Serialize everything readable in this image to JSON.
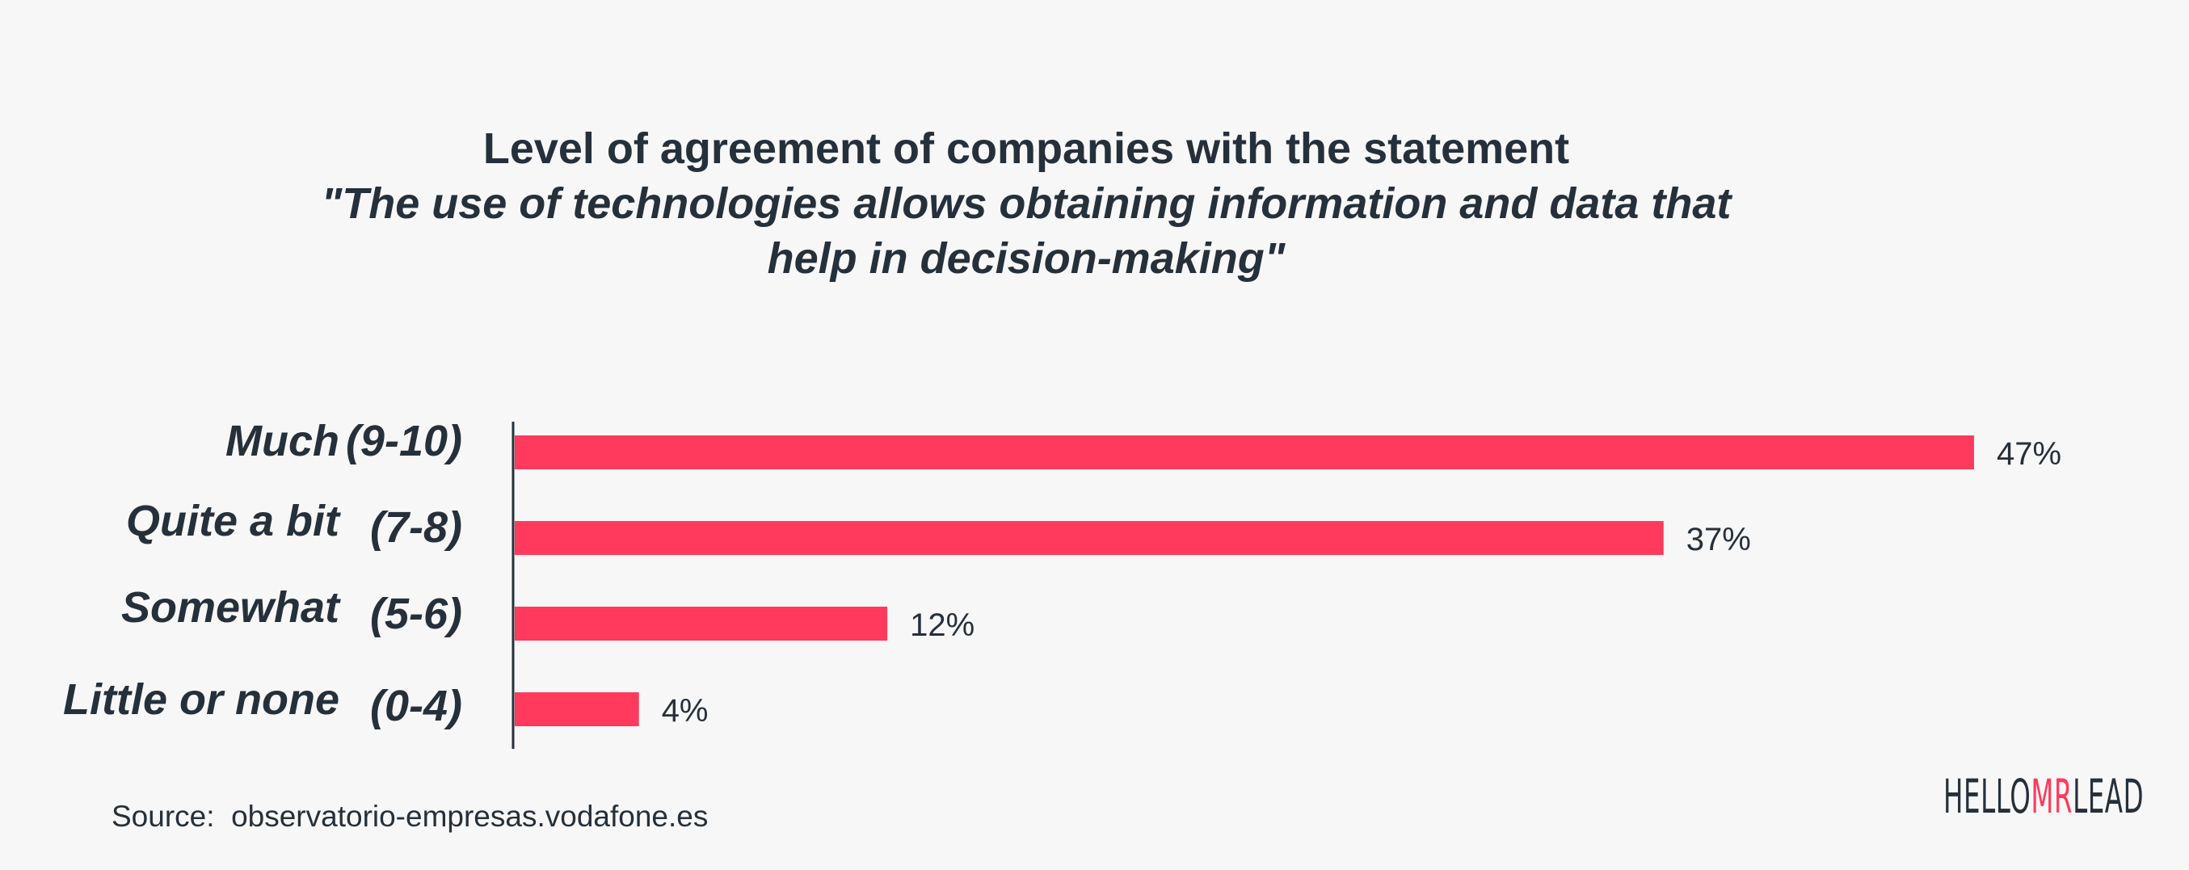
{
  "chart_data": {
    "type": "bar",
    "orientation": "horizontal",
    "title": "Level of agreement of companies with the statement",
    "subtitle_lines": [
      "\"The use of technologies allows obtaining information and data that",
      "help in decision-making\""
    ],
    "categories": [
      {
        "name": "Much",
        "range": "(9-10)"
      },
      {
        "name": "Quite a bit",
        "range": "(7-8)"
      },
      {
        "name": "Somewhat",
        "range": "(5-6)"
      },
      {
        "name": "Little or none",
        "range": "(0-4)"
      }
    ],
    "values": [
      47,
      37,
      12,
      4
    ],
    "value_labels": [
      "47%",
      "37%",
      "12%",
      "4%"
    ],
    "unit": "%",
    "xlim": [
      0,
      47
    ],
    "grid": false,
    "bar_color": "#ff3a5c"
  },
  "footer": {
    "source_label": "Source:",
    "source_text": "observatorio-empresas.vodafone.es"
  },
  "logo": {
    "text_left": "HELLO",
    "text_accent": "MR",
    "text_right": "LEAD",
    "accent_color": "#ff3a5c"
  }
}
